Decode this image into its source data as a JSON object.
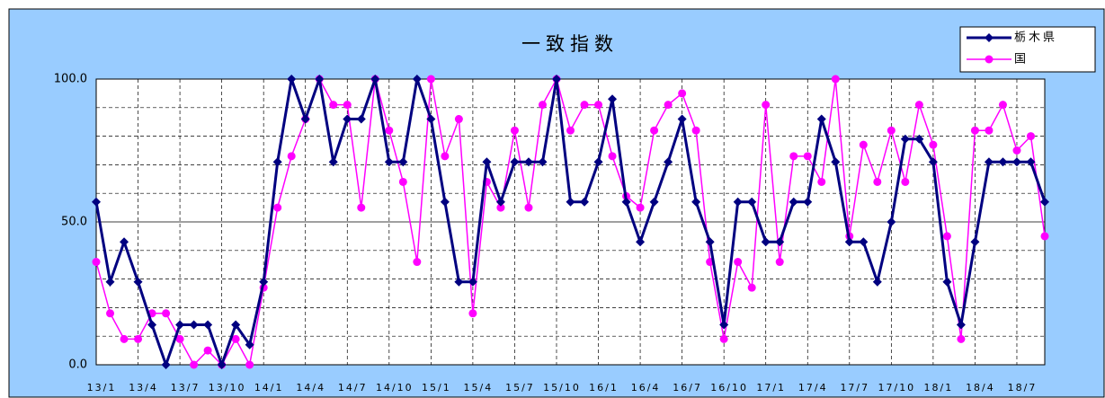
{
  "chart_data": {
    "type": "line",
    "title": "一致指数",
    "categories": [
      "13/1",
      null,
      null,
      "13/4",
      null,
      null,
      "13/7",
      null,
      null,
      "13/10",
      null,
      null,
      "14/1",
      null,
      null,
      "14/4",
      null,
      null,
      "14/7",
      null,
      null,
      "14/10",
      null,
      null,
      "15/1",
      null,
      null,
      "15/4",
      null,
      null,
      "15/7",
      null,
      null,
      "15/10",
      null,
      null,
      "16/1",
      null,
      null,
      "16/4",
      null,
      null,
      "16/7",
      null,
      null,
      "16/10",
      null,
      null,
      "17/1",
      null,
      null,
      "17/4",
      null,
      null,
      "17/7",
      null,
      null,
      "17/10",
      null,
      null,
      "18/1",
      null,
      null,
      "18/4",
      null,
      null,
      "18/7",
      null,
      null
    ],
    "series": [
      {
        "name": "栃木県",
        "color": "#000080",
        "marker": "diamond",
        "values": [
          57,
          29,
          43,
          29,
          14,
          0,
          14,
          14,
          14,
          0,
          14,
          7,
          29,
          71,
          100,
          86,
          100,
          71,
          86,
          86,
          100,
          71,
          71,
          100,
          86,
          57,
          29,
          29,
          71,
          57,
          71,
          71,
          71,
          100,
          57,
          57,
          71,
          93,
          57,
          43,
          57,
          71,
          86,
          57,
          43,
          14,
          57,
          57,
          43,
          43,
          57,
          57,
          86,
          71,
          43,
          43,
          29,
          50,
          79,
          79,
          71,
          29,
          14,
          43,
          71,
          71,
          71,
          71,
          57
        ]
      },
      {
        "name": "国",
        "color": "#ff00ff",
        "marker": "circle",
        "values": [
          36,
          18,
          9,
          9,
          18,
          18,
          9,
          0,
          5,
          0,
          9,
          0,
          27,
          55,
          73,
          86,
          100,
          91,
          91,
          55,
          100,
          82,
          64,
          36,
          100,
          73,
          86,
          18,
          64,
          55,
          82,
          55,
          91,
          100,
          82,
          91,
          91,
          73,
          59,
          55,
          82,
          91,
          95,
          82,
          36,
          9,
          36,
          27,
          91,
          36,
          73,
          73,
          64,
          100,
          45,
          77,
          64,
          82,
          64,
          91,
          77,
          45,
          9,
          82,
          82,
          91,
          75,
          80,
          45
        ]
      }
    ],
    "ylim": [
      0,
      100
    ],
    "yticks": [
      {
        "value": 0,
        "label": "0.0"
      },
      {
        "value": 50,
        "label": "50.0"
      },
      {
        "value": 100,
        "label": "100.0"
      }
    ],
    "minor_yticks": [
      10,
      20,
      30,
      40,
      60,
      70,
      80,
      90
    ],
    "grid": true,
    "legend": "upper right"
  }
}
